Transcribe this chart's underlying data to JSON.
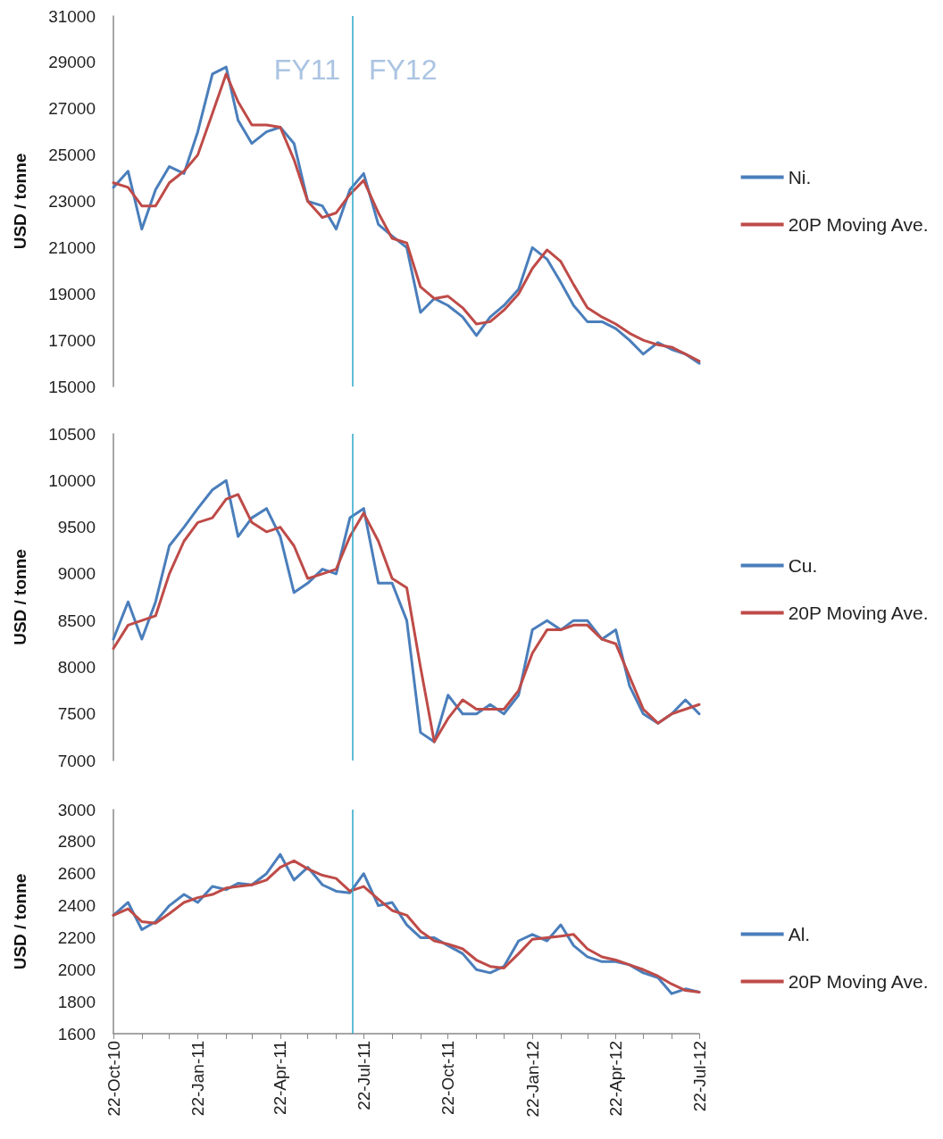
{
  "chart_data": [
    {
      "type": "line",
      "ylabel": "USD / tonne",
      "xlim": [
        "2010-10-22",
        "2012-07-22"
      ],
      "ylim": [
        15000,
        31000
      ],
      "yticks": [
        15000,
        17000,
        19000,
        21000,
        23000,
        25000,
        27000,
        29000,
        31000
      ],
      "tick_labels": "y",
      "grid": false,
      "legend": "right",
      "marker": "none",
      "line_style": "solid",
      "x": [
        "2010-10-22",
        "2010-11-07",
        "2010-11-22",
        "2010-12-07",
        "2010-12-22",
        "2011-01-07",
        "2011-01-22",
        "2011-02-07",
        "2011-02-22",
        "2011-03-07",
        "2011-03-22",
        "2011-04-07",
        "2011-04-22",
        "2011-05-07",
        "2011-05-22",
        "2011-06-07",
        "2011-06-22",
        "2011-07-07",
        "2011-07-22",
        "2011-08-07",
        "2011-08-22",
        "2011-09-07",
        "2011-09-22",
        "2011-10-07",
        "2011-10-22",
        "2011-11-07",
        "2011-11-22",
        "2011-12-07",
        "2011-12-22",
        "2012-01-07",
        "2012-01-22",
        "2012-02-07",
        "2012-02-22",
        "2012-03-07",
        "2012-03-22",
        "2012-04-07",
        "2012-04-22",
        "2012-05-07",
        "2012-05-22",
        "2012-06-07",
        "2012-06-22",
        "2012-07-07",
        "2012-07-22"
      ],
      "series": [
        {
          "name": "Ni.",
          "color": "#4a7ebb",
          "values": [
            23600,
            24300,
            21800,
            23500,
            24500,
            24200,
            26000,
            28500,
            28800,
            26500,
            25500,
            26000,
            26200,
            25500,
            23000,
            22800,
            21800,
            23500,
            24200,
            22000,
            21500,
            21000,
            18200,
            18800,
            18500,
            18000,
            17200,
            18000,
            18500,
            19200,
            21000,
            20500,
            19500,
            18500,
            17800,
            17800,
            17500,
            17000,
            16400,
            16900,
            16600,
            16400,
            16000
          ]
        },
        {
          "name": "20P Moving Ave.",
          "color": "#be4b48",
          "values": [
            23800,
            23600,
            22800,
            22800,
            23800,
            24300,
            25000,
            26800,
            28500,
            27300,
            26300,
            26300,
            26200,
            24800,
            23000,
            22300,
            22500,
            23300,
            23900,
            22500,
            21400,
            21200,
            19300,
            18800,
            18900,
            18400,
            17700,
            17800,
            18300,
            19000,
            20100,
            20900,
            20400,
            19400,
            18400,
            18000,
            17700,
            17300,
            17000,
            16800,
            16700,
            16400,
            16100
          ]
        }
      ],
      "ref_lines": [
        {
          "axis": "x",
          "value": "2011-07-10",
          "color": "#2aa7c9"
        }
      ],
      "annotations": [
        "FY11",
        "FY12"
      ]
    },
    {
      "type": "line",
      "ylabel": "USD / tonne",
      "xlim": [
        "2010-10-22",
        "2012-07-22"
      ],
      "ylim": [
        7000,
        10500
      ],
      "yticks": [
        7000,
        7500,
        8000,
        8500,
        9000,
        9500,
        10000,
        10500
      ],
      "tick_labels": "y",
      "grid": false,
      "legend": "right",
      "marker": "none",
      "line_style": "solid",
      "x": [
        "2010-10-22",
        "2010-11-07",
        "2010-11-22",
        "2010-12-07",
        "2010-12-22",
        "2011-01-07",
        "2011-01-22",
        "2011-02-07",
        "2011-02-22",
        "2011-03-07",
        "2011-03-22",
        "2011-04-07",
        "2011-04-22",
        "2011-05-07",
        "2011-05-22",
        "2011-06-07",
        "2011-06-22",
        "2011-07-07",
        "2011-07-22",
        "2011-08-07",
        "2011-08-22",
        "2011-09-07",
        "2011-09-22",
        "2011-10-07",
        "2011-10-22",
        "2011-11-07",
        "2011-11-22",
        "2011-12-07",
        "2011-12-22",
        "2012-01-07",
        "2012-01-22",
        "2012-02-07",
        "2012-02-22",
        "2012-03-07",
        "2012-03-22",
        "2012-04-07",
        "2012-04-22",
        "2012-05-07",
        "2012-05-22",
        "2012-06-07",
        "2012-06-22",
        "2012-07-07",
        "2012-07-22"
      ],
      "series": [
        {
          "name": "Cu.",
          "color": "#4a7ebb",
          "values": [
            8300,
            8700,
            8300,
            8700,
            9300,
            9500,
            9700,
            9900,
            10000,
            9400,
            9600,
            9700,
            9400,
            8800,
            8900,
            9050,
            9000,
            9600,
            9700,
            8900,
            8900,
            8500,
            7300,
            7200,
            7700,
            7500,
            7500,
            7600,
            7500,
            7700,
            8400,
            8500,
            8400,
            8500,
            8500,
            8300,
            8400,
            7800,
            7500,
            7400,
            7500,
            7650,
            7500
          ]
        },
        {
          "name": "20P Moving Ave.",
          "color": "#be4b48",
          "values": [
            8200,
            8450,
            8500,
            8550,
            9000,
            9350,
            9550,
            9600,
            9800,
            9850,
            9550,
            9450,
            9500,
            9300,
            8950,
            9000,
            9050,
            9400,
            9650,
            9350,
            8950,
            8850,
            8000,
            7200,
            7450,
            7650,
            7550,
            7550,
            7550,
            7750,
            8150,
            8400,
            8400,
            8450,
            8450,
            8300,
            8250,
            7900,
            7550,
            7400,
            7500,
            7550,
            7600
          ]
        }
      ],
      "ref_lines": [
        {
          "axis": "x",
          "value": "2011-07-10",
          "color": "#2aa7c9"
        }
      ]
    },
    {
      "type": "line",
      "ylabel": "USD / tonne",
      "xlim": [
        "2010-10-22",
        "2012-07-22"
      ],
      "xticks": [
        {
          "value": "2010-10-22",
          "label": "22-Oct-10"
        },
        {
          "value": "2010-11-22",
          "label": null
        },
        {
          "value": "2010-12-22",
          "label": null
        },
        {
          "value": "2011-01-22",
          "label": "22-Jan-11"
        },
        {
          "value": "2011-02-22",
          "label": null
        },
        {
          "value": "2011-03-22",
          "label": null
        },
        {
          "value": "2011-04-22",
          "label": "22-Apr-11"
        },
        {
          "value": "2011-05-22",
          "label": null
        },
        {
          "value": "2011-06-22",
          "label": null
        },
        {
          "value": "2011-07-22",
          "label": "22-Jul-11"
        },
        {
          "value": "2011-08-22",
          "label": null
        },
        {
          "value": "2011-09-22",
          "label": null
        },
        {
          "value": "2011-10-22",
          "label": "22-Oct-11"
        },
        {
          "value": "2011-11-22",
          "label": null
        },
        {
          "value": "2011-12-22",
          "label": null
        },
        {
          "value": "2012-01-22",
          "label": "22-Jan-12"
        },
        {
          "value": "2012-02-22",
          "label": null
        },
        {
          "value": "2012-03-22",
          "label": null
        },
        {
          "value": "2012-04-22",
          "label": "22-Apr-12"
        },
        {
          "value": "2012-05-22",
          "label": null
        },
        {
          "value": "2012-06-22",
          "label": null
        },
        {
          "value": "2012-07-22",
          "label": "22-Jul-12"
        }
      ],
      "ylim": [
        1600,
        3000
      ],
      "yticks": [
        1600,
        1800,
        2000,
        2200,
        2400,
        2600,
        2800,
        3000
      ],
      "grid": false,
      "legend": "right",
      "marker": "none",
      "line_style": "solid",
      "x": [
        "2010-10-22",
        "2010-11-07",
        "2010-11-22",
        "2010-12-07",
        "2010-12-22",
        "2011-01-07",
        "2011-01-22",
        "2011-02-07",
        "2011-02-22",
        "2011-03-07",
        "2011-03-22",
        "2011-04-07",
        "2011-04-22",
        "2011-05-07",
        "2011-05-22",
        "2011-06-07",
        "2011-06-22",
        "2011-07-07",
        "2011-07-22",
        "2011-08-07",
        "2011-08-22",
        "2011-09-07",
        "2011-09-22",
        "2011-10-07",
        "2011-10-22",
        "2011-11-07",
        "2011-11-22",
        "2011-12-07",
        "2011-12-22",
        "2012-01-07",
        "2012-01-22",
        "2012-02-07",
        "2012-02-22",
        "2012-03-07",
        "2012-03-22",
        "2012-04-07",
        "2012-04-22",
        "2012-05-07",
        "2012-05-22",
        "2012-06-07",
        "2012-06-22",
        "2012-07-07",
        "2012-07-22"
      ],
      "series": [
        {
          "name": "Al.",
          "color": "#4a7ebb",
          "values": [
            2340,
            2420,
            2250,
            2300,
            2400,
            2470,
            2420,
            2520,
            2500,
            2540,
            2530,
            2600,
            2720,
            2560,
            2640,
            2530,
            2490,
            2480,
            2600,
            2400,
            2420,
            2280,
            2200,
            2200,
            2150,
            2100,
            2000,
            1980,
            2020,
            2180,
            2220,
            2180,
            2280,
            2150,
            2080,
            2050,
            2050,
            2030,
            1980,
            1950,
            1850,
            1880,
            1860
          ]
        },
        {
          "name": "20P Moving Ave.",
          "color": "#be4b48",
          "values": [
            2340,
            2380,
            2300,
            2290,
            2350,
            2420,
            2450,
            2470,
            2510,
            2520,
            2530,
            2560,
            2640,
            2680,
            2630,
            2590,
            2570,
            2490,
            2520,
            2440,
            2370,
            2340,
            2240,
            2180,
            2160,
            2130,
            2060,
            2020,
            2010,
            2100,
            2190,
            2200,
            2210,
            2220,
            2130,
            2080,
            2060,
            2030,
            2000,
            1960,
            1910,
            1870,
            1860
          ]
        }
      ],
      "ref_lines": [
        {
          "axis": "x",
          "value": "2011-07-10",
          "color": "#2aa7c9"
        }
      ]
    }
  ]
}
